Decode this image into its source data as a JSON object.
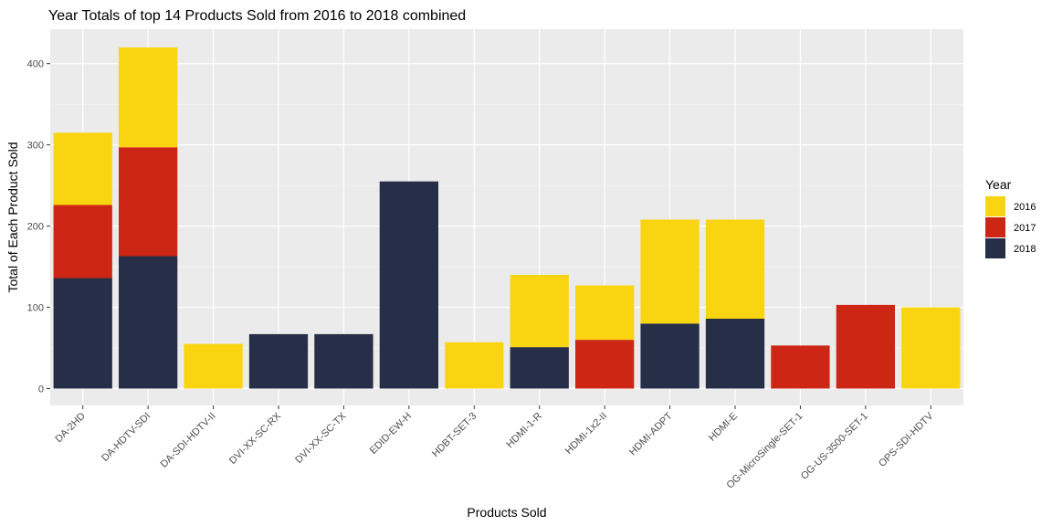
{
  "chart_data": {
    "type": "bar",
    "stacked": true,
    "title": "Year Totals of top 14 Products Sold from 2016 to 2018 combined",
    "xlabel": "Products Sold",
    "ylabel": "Total of Each Product Sold",
    "ylim": [
      0,
      440
    ],
    "yticks": [
      0,
      100,
      200,
      300,
      400
    ],
    "grid": true,
    "legend": {
      "title": "Year",
      "placement": "right"
    },
    "categories": [
      "DA-2HD",
      "DA-HDTV-SDI",
      "DA-SDI-HDTV-II",
      "DVI-XX-SC-RX",
      "DVI-XX-SC-TX",
      "EDID-EW-H",
      "HDBT-SET-3",
      "HDMI-1-R",
      "HDMI-1x2-II",
      "HDMI-ADPT",
      "HDMI-E",
      "OG-MicroSingle-SET-1",
      "OG-US-3500-SET-1",
      "OPS-SDI-HDTV"
    ],
    "series": [
      {
        "name": "2018",
        "color": "#262f47",
        "values": [
          136,
          163,
          0,
          67,
          67,
          255,
          0,
          51,
          0,
          80,
          86,
          0,
          0,
          0
        ]
      },
      {
        "name": "2017",
        "color": "#cd2614",
        "values": [
          90,
          134,
          0,
          0,
          0,
          0,
          0,
          0,
          60,
          0,
          0,
          53,
          103,
          0
        ]
      },
      {
        "name": "2016",
        "color": "#f9d511",
        "values": [
          89,
          123,
          55,
          0,
          0,
          0,
          57,
          89,
          67,
          128,
          122,
          0,
          0,
          100
        ]
      }
    ],
    "legend_order": [
      "2016",
      "2017",
      "2018"
    ]
  }
}
